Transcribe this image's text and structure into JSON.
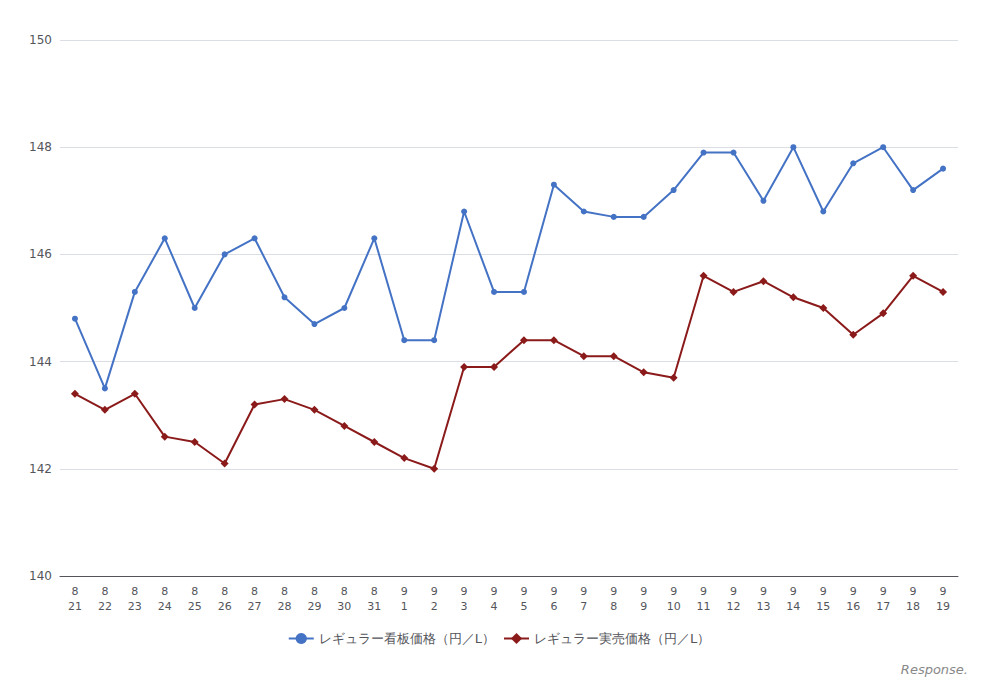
{
  "chart_data": {
    "type": "line",
    "categories": [
      "8\n21",
      "8\n22",
      "8\n23",
      "8\n24",
      "8\n25",
      "8\n26",
      "8\n27",
      "8\n28",
      "8\n29",
      "8\n30",
      "8\n31",
      "9\n1",
      "9\n2",
      "9\n3",
      "9\n4",
      "9\n5",
      "9\n6",
      "9\n7",
      "9\n8",
      "9\n9",
      "9\n10",
      "9\n11",
      "9\n12",
      "9\n13",
      "9\n14",
      "9\n15",
      "9\n16",
      "9\n17",
      "9\n18",
      "9\n19"
    ],
    "series": [
      {
        "name": "レギュラー看板価格（円／L）",
        "color": "#4472c4",
        "marker": "circle",
        "values": [
          144.8,
          143.5,
          145.3,
          146.3,
          145.0,
          146.0,
          146.3,
          145.2,
          144.7,
          145.0,
          146.3,
          144.4,
          144.4,
          146.8,
          145.3,
          145.3,
          147.3,
          146.8,
          146.7,
          146.7,
          147.2,
          147.9,
          147.9,
          147.0,
          148.0,
          146.8,
          147.7,
          148.0,
          147.2,
          147.6
        ]
      },
      {
        "name": "レギュラー実売価格（円／L）",
        "color": "#8b1a1a",
        "marker": "diamond",
        "values": [
          143.4,
          143.1,
          143.4,
          142.6,
          142.5,
          142.1,
          143.2,
          143.3,
          143.1,
          142.8,
          142.5,
          142.2,
          142.0,
          143.9,
          143.9,
          144.4,
          144.4,
          144.1,
          144.1,
          143.8,
          143.7,
          145.6,
          145.3,
          145.5,
          145.2,
          145.0,
          144.5,
          144.9,
          145.6,
          145.3
        ]
      }
    ],
    "ylim": [
      140,
      150
    ],
    "yticks": [
      140,
      142,
      144,
      146,
      148,
      150
    ],
    "grid": true,
    "legend": "bottom",
    "annotations": [
      "Response."
    ]
  }
}
